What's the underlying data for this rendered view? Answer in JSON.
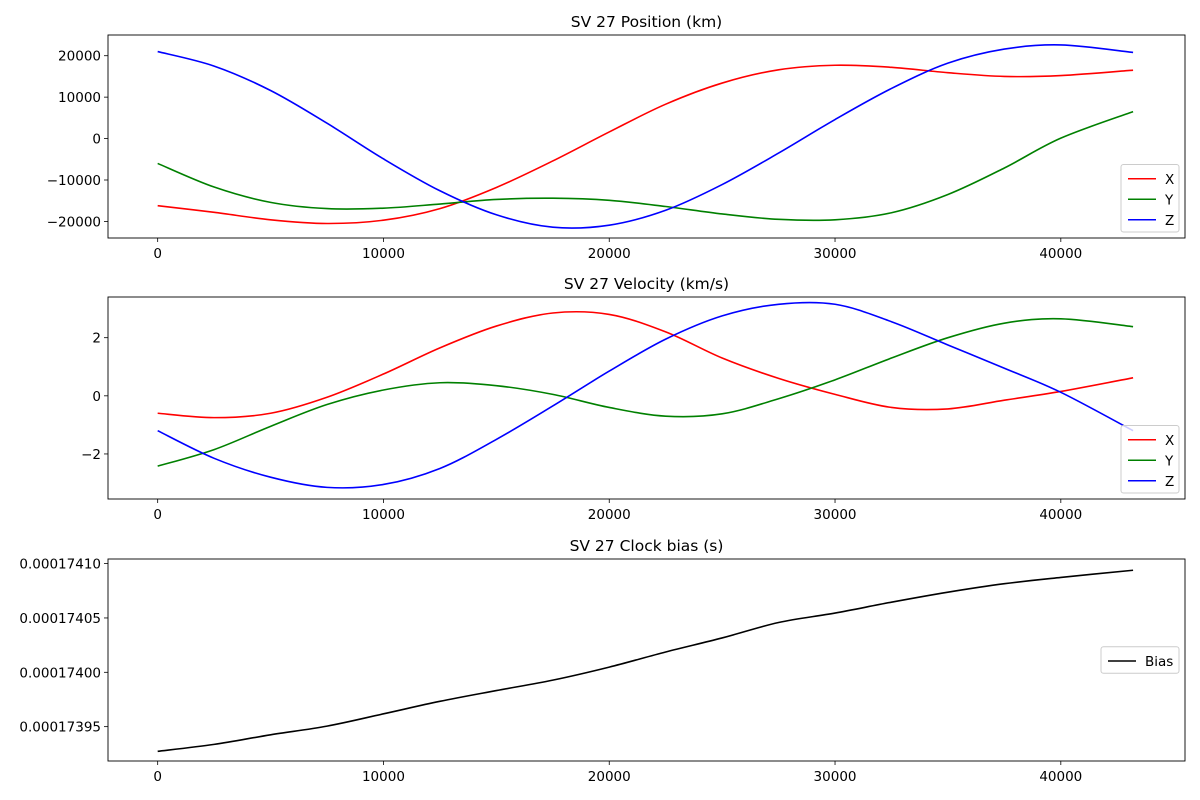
{
  "figure": {
    "background": "#ffffff"
  },
  "chart_data": [
    {
      "type": "line",
      "title": "SV 27 Position (km)",
      "xlabel": "",
      "ylabel": "",
      "xlim": [
        -2200,
        45500
      ],
      "ylim": [
        -24000,
        25000
      ],
      "x_ticks": [
        0,
        10000,
        20000,
        30000,
        40000
      ],
      "y_ticks": [
        -20000,
        -10000,
        0,
        10000,
        20000
      ],
      "x_tick_labels": [
        "0",
        "10000",
        "20000",
        "30000",
        "40000"
      ],
      "y_tick_labels": [
        "−20000",
        "−10000",
        "0",
        "10000",
        "20000"
      ],
      "grid": false,
      "legend": {
        "position": "lower-right",
        "entries": [
          "X",
          "Y",
          "Z"
        ]
      },
      "x": [
        0,
        2500,
        5000,
        7500,
        10000,
        12500,
        15000,
        17500,
        20000,
        22500,
        25000,
        27500,
        30000,
        32500,
        35000,
        37500,
        40000,
        43200
      ],
      "series": [
        {
          "name": "X",
          "color": "#ff0000",
          "values": [
            -16200,
            -17800,
            -19600,
            -20500,
            -19700,
            -16900,
            -11800,
            -5400,
            1600,
            8300,
            13400,
            16600,
            17700,
            17200,
            15900,
            15000,
            15200,
            16500
          ]
        },
        {
          "name": "Y",
          "color": "#008000",
          "values": [
            -6000,
            -11700,
            -15400,
            -16900,
            -16800,
            -15800,
            -14700,
            -14400,
            -14900,
            -16400,
            -18200,
            -19500,
            -19600,
            -17900,
            -13500,
            -7100,
            100,
            6500
          ]
        },
        {
          "name": "Z",
          "color": "#0000ff",
          "values": [
            21000,
            17500,
            11600,
            3700,
            -4900,
            -12600,
            -18400,
            -21400,
            -20900,
            -17300,
            -11100,
            -3500,
            4600,
            12100,
            18200,
            21600,
            22600,
            20800
          ]
        }
      ]
    },
    {
      "type": "line",
      "title": "SV 27 Velocity (km/s)",
      "xlabel": "",
      "ylabel": "",
      "xlim": [
        -2200,
        45500
      ],
      "ylim": [
        -3.55,
        3.4
      ],
      "x_ticks": [
        0,
        10000,
        20000,
        30000,
        40000
      ],
      "y_ticks": [
        -2,
        0,
        2
      ],
      "x_tick_labels": [
        "0",
        "10000",
        "20000",
        "30000",
        "40000"
      ],
      "y_tick_labels": [
        "−2",
        "0",
        "2"
      ],
      "grid": false,
      "legend": {
        "position": "lower-right",
        "entries": [
          "X",
          "Y",
          "Z"
        ]
      },
      "x": [
        0,
        2500,
        5000,
        7500,
        10000,
        12500,
        15000,
        17500,
        20000,
        22500,
        25000,
        27500,
        30000,
        32500,
        35000,
        37500,
        40000,
        43200
      ],
      "series": [
        {
          "name": "X",
          "color": "#ff0000",
          "values": [
            -0.6,
            -0.75,
            -0.6,
            -0.05,
            0.75,
            1.65,
            2.4,
            2.85,
            2.8,
            2.2,
            1.3,
            0.6,
            0.05,
            -0.4,
            -0.45,
            -0.15,
            0.15,
            0.62
          ]
        },
        {
          "name": "Y",
          "color": "#008000",
          "values": [
            -2.42,
            -1.85,
            -1.05,
            -0.3,
            0.2,
            0.45,
            0.35,
            0.05,
            -0.4,
            -0.7,
            -0.62,
            -0.1,
            0.55,
            1.3,
            2.0,
            2.5,
            2.65,
            2.38
          ]
        },
        {
          "name": "Z",
          "color": "#0000ff",
          "values": [
            -1.2,
            -2.15,
            -2.8,
            -3.15,
            -3.05,
            -2.5,
            -1.5,
            -0.35,
            0.85,
            1.95,
            2.75,
            3.15,
            3.15,
            2.55,
            1.75,
            0.95,
            0.12,
            -1.2
          ]
        }
      ]
    },
    {
      "type": "line",
      "title": "SV 27 Clock bias (s)",
      "xlabel": "",
      "ylabel": "",
      "xlim": [
        -2200,
        45500
      ],
      "ylim": [
        0.0001739184,
        0.00017410424
      ],
      "x_ticks": [
        0,
        10000,
        20000,
        30000,
        40000
      ],
      "y_ticks": [
        0.00017395,
        0.000174,
        0.00017405,
        0.0001741
      ],
      "x_tick_labels": [
        "0",
        "10000",
        "20000",
        "30000",
        "40000"
      ],
      "y_tick_labels": [
        "0.00017395",
        "0.00017400",
        "0.00017405",
        "0.00017410"
      ],
      "grid": false,
      "legend": {
        "position": "center-right",
        "entries": [
          "Bias"
        ]
      },
      "x": [
        0,
        2500,
        5000,
        7500,
        10000,
        12500,
        15000,
        17500,
        20000,
        22500,
        25000,
        27500,
        30000,
        32500,
        35000,
        37500,
        40000,
        43200
      ],
      "series": [
        {
          "name": "Bias",
          "color": "#000000",
          "values": [
            0.0001739273,
            0.0001739337,
            0.0001739425,
            0.0001739505,
            0.0001739618,
            0.0001739733,
            0.0001739832,
            0.0001739928,
            0.0001740048,
            0.0001740187,
            0.0001740316,
            0.0001740458,
            0.0001740545,
            0.0001740645,
            0.0001740737,
            0.0001740815,
            0.0001740873,
            0.0001740939
          ]
        }
      ]
    }
  ]
}
